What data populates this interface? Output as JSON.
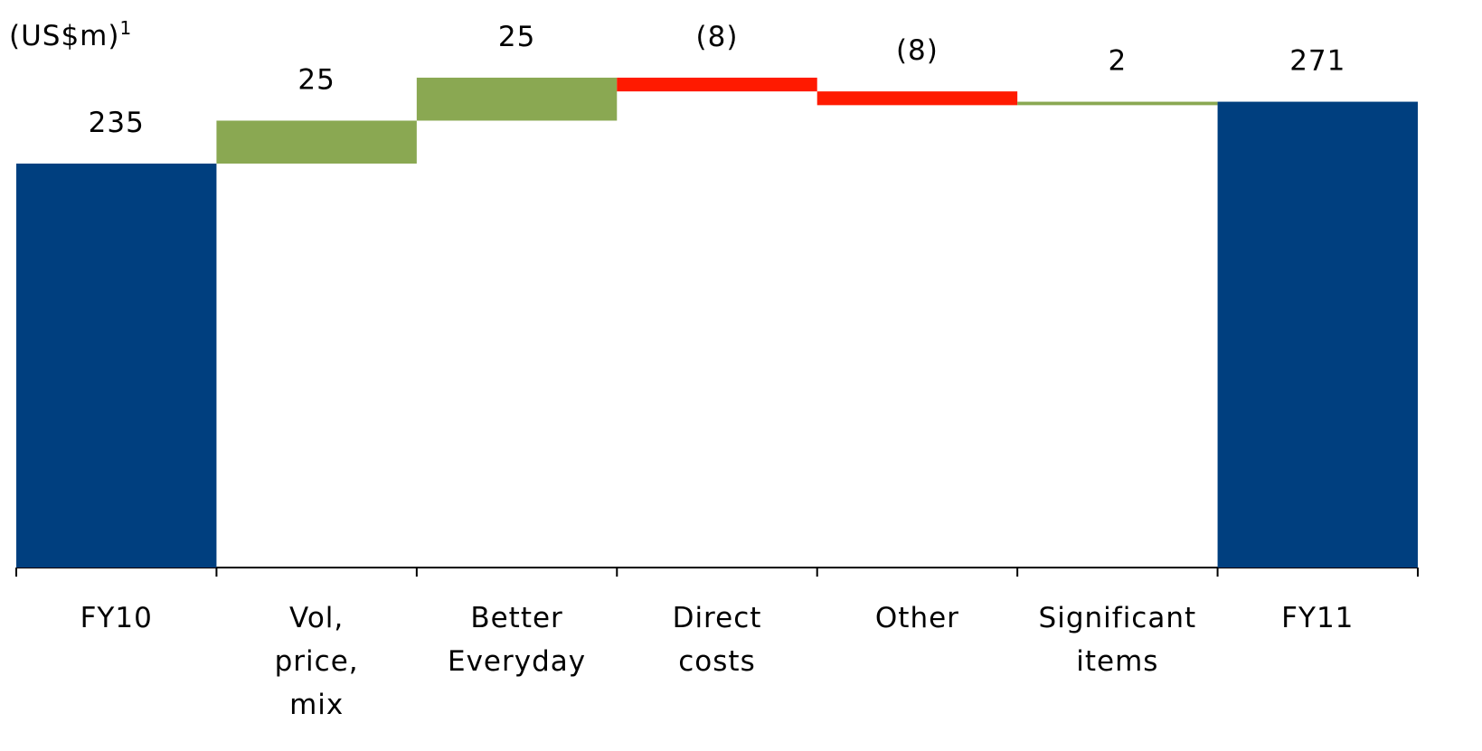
{
  "chart_data": {
    "type": "waterfall",
    "title": "(US$m)",
    "title_superscript": "1",
    "categories": [
      "FY10",
      "Vol,\nprice,\nmix",
      "Better\nEveryday",
      "Direct\ncosts",
      "Other",
      "Significant\nitems",
      "FY11"
    ],
    "values": [
      235,
      25,
      25,
      -8,
      -8,
      2,
      271
    ],
    "value_labels": [
      "235",
      "25",
      "25",
      "(8)",
      "(8)",
      "2",
      "271"
    ],
    "colors": {
      "total": "#003f7f",
      "increase": "#8aa852",
      "decrease": "#ff1a00"
    }
  }
}
